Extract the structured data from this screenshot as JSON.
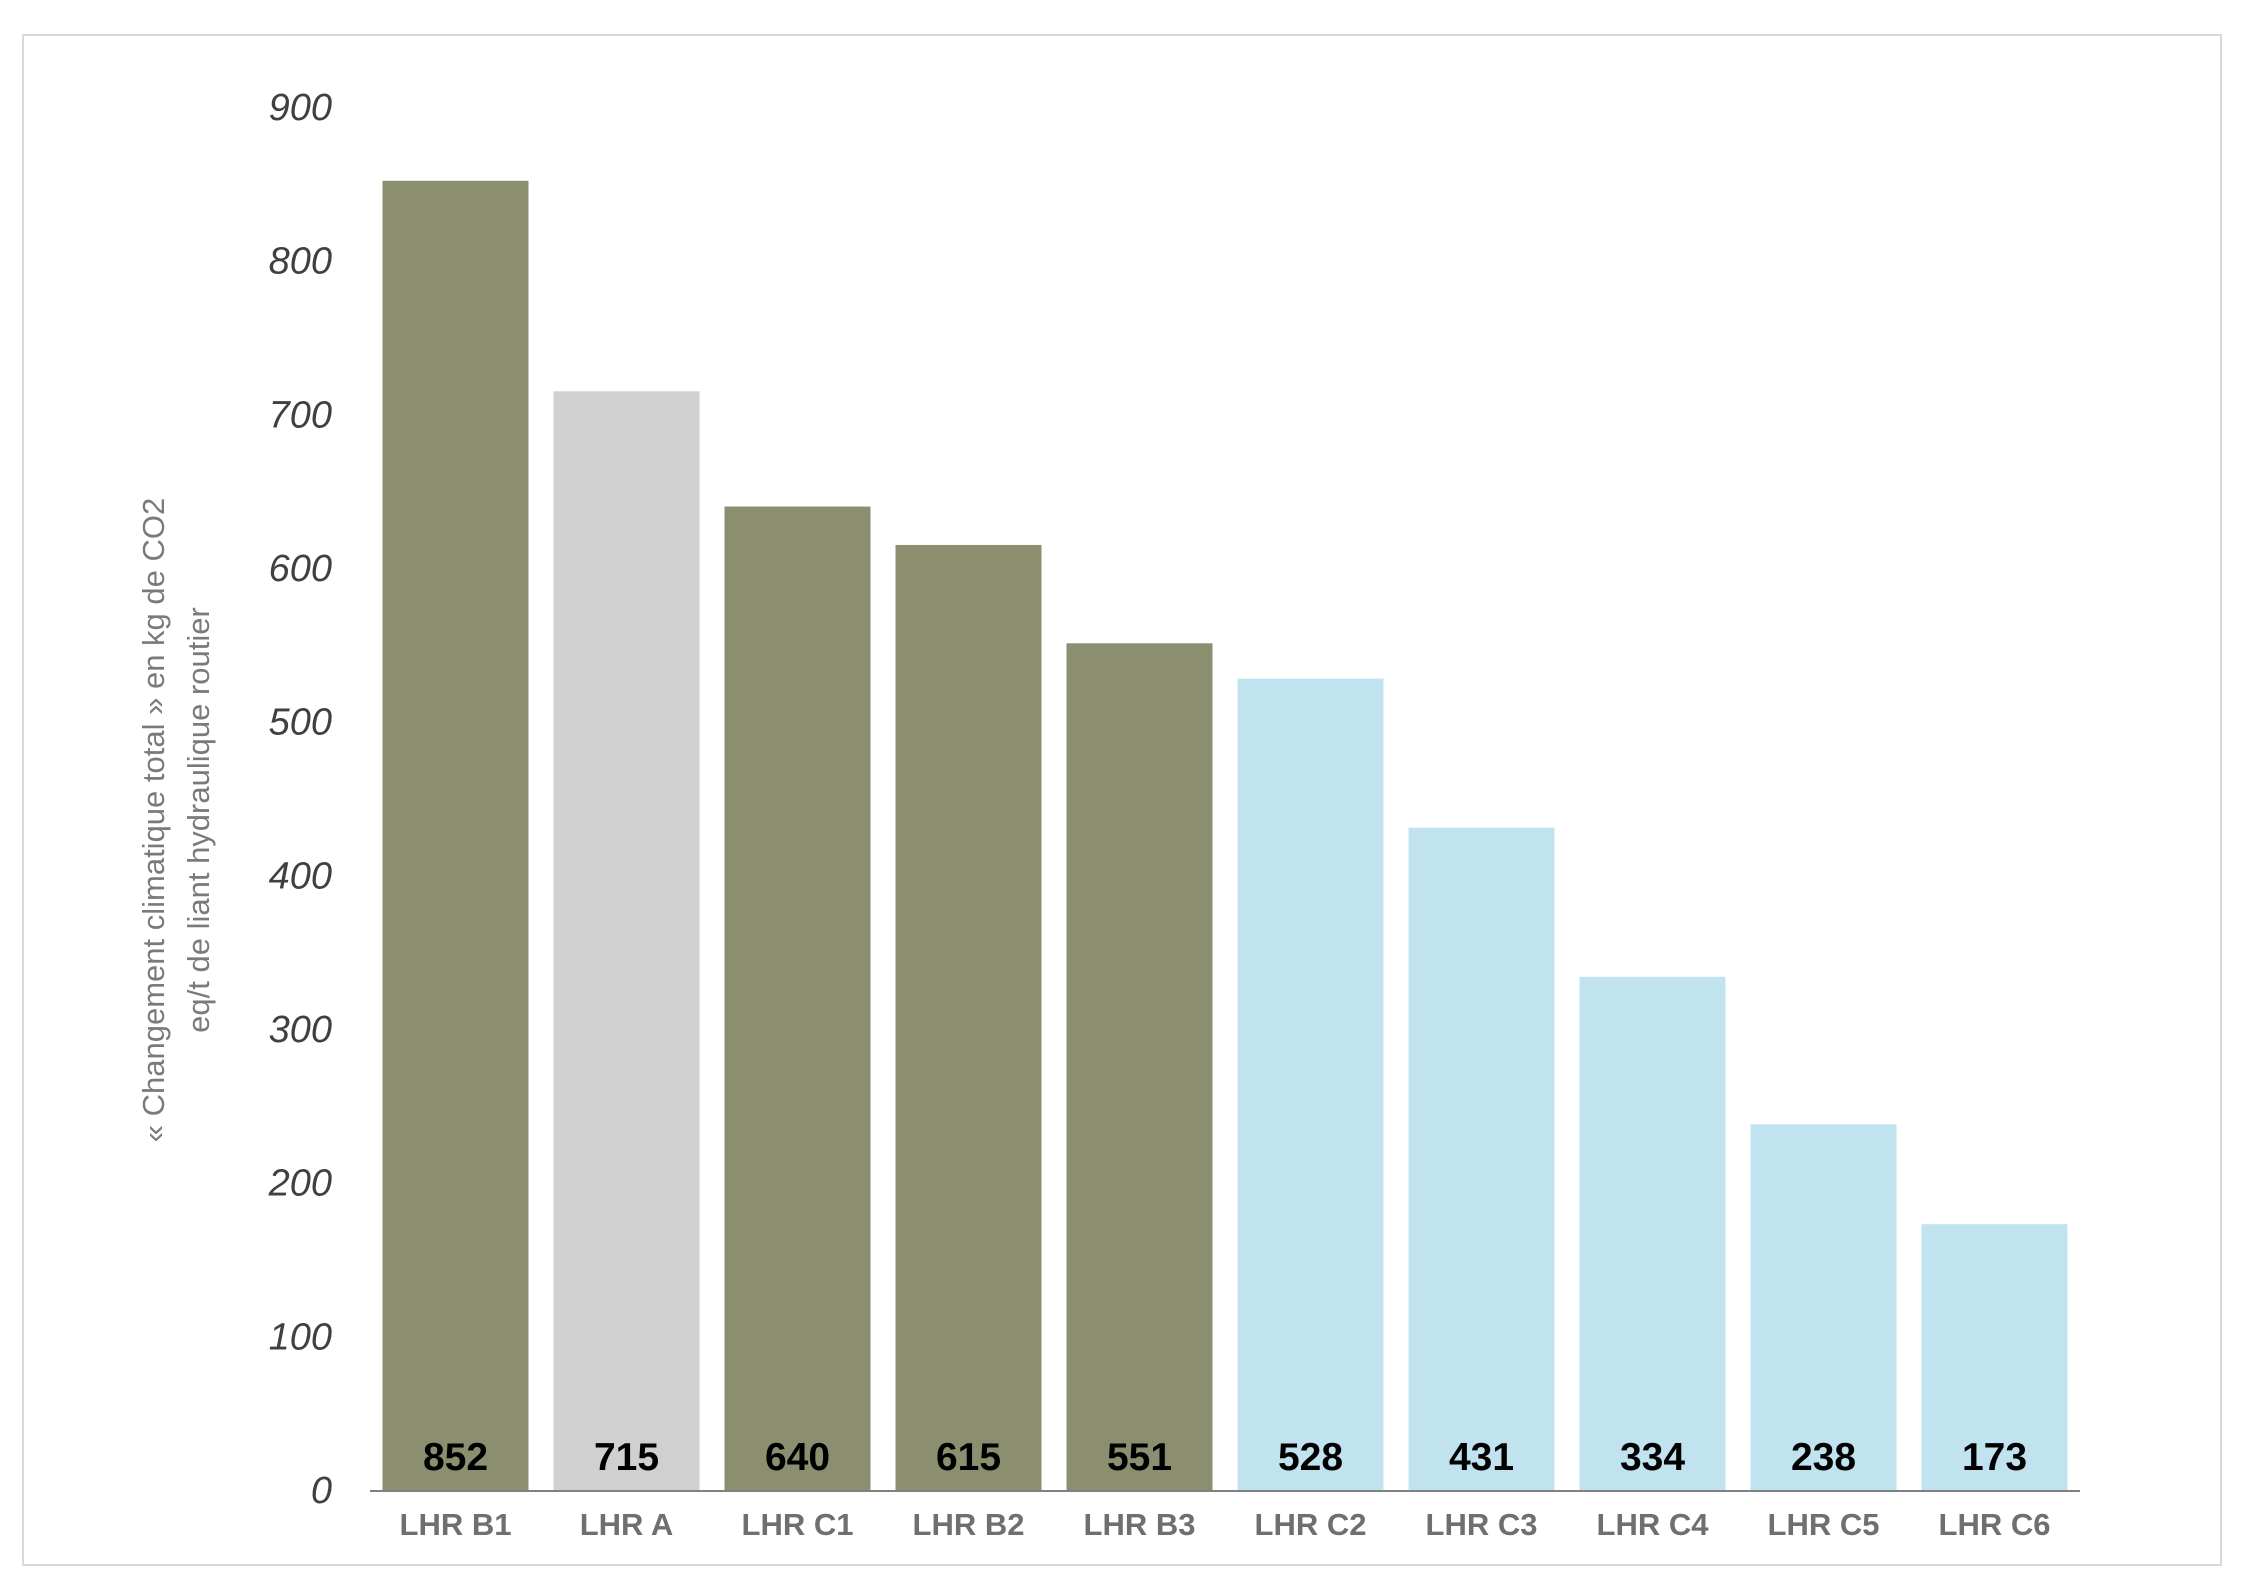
{
  "chart_data": {
    "type": "bar",
    "title": "",
    "xlabel": "",
    "ylabel_lines": [
      "« Changement climatique total » en kg de CO2",
      "eq/t de liant hydraulique routier"
    ],
    "ylim": [
      0,
      900
    ],
    "yticks": [
      0,
      100,
      200,
      300,
      400,
      500,
      600,
      700,
      800,
      900
    ],
    "grid": false,
    "legend": "none",
    "categories": [
      "LHR B1",
      "LHR A",
      "LHR C1",
      "LHR B2",
      "LHR B3",
      "LHR C2",
      "LHR C3",
      "LHR C4",
      "LHR C5",
      "LHR C6"
    ],
    "values": [
      852,
      715,
      640,
      615,
      551,
      528,
      431,
      334,
      238,
      173
    ],
    "data_labels": [
      "852",
      "715",
      "640",
      "615",
      "551",
      "528",
      "431",
      "334",
      "238",
      "173"
    ],
    "bar_colors": [
      "#8c8f6f",
      "#d0d0d0",
      "#8c8f6f",
      "#8c8f6f",
      "#8c8f6f",
      "#c0e3ef",
      "#c0e3ef",
      "#c0e3ef",
      "#c0e3ef",
      "#c0e3ef"
    ],
    "axis_color": "#808080"
  }
}
